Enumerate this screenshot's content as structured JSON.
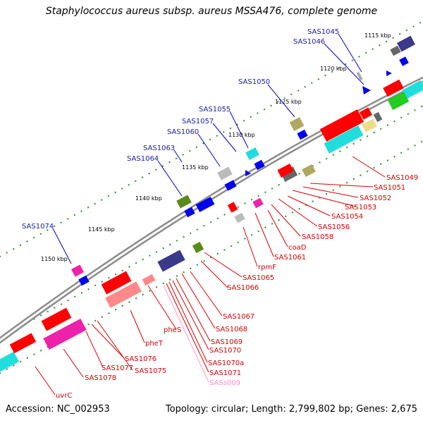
{
  "title": "Staphylococcus aureus subsp. aureus MSSA476, complete genome",
  "accession": "Accession: NC_002953",
  "summary": "Topology: circular; Length: 2,799,802 bp; Genes: 2,675",
  "kbp_labels": [
    "1115 kbp",
    "1120 kbp",
    "1125 kbp",
    "1130 kbp",
    "1135 kbp",
    "1140 kbp",
    "1145 kbp",
    "1150 kbp"
  ],
  "outer_genes": [
    "SAS1045",
    "SAS1046",
    "SAS1050",
    "SAS1055",
    "SAS1057",
    "SAS1060",
    "SAS1063",
    "SAS1064",
    "SAS1074"
  ],
  "inner_genes": [
    "SAS1049",
    "SAS1051",
    "SAS1052",
    "SAS1053",
    "SAS1054",
    "SAS1056",
    "SAS1058",
    "coaD",
    "SAS1061",
    "rpmF",
    "SAS1065",
    "SAS1066",
    "SAS1067",
    "SAS1068",
    "pheS",
    "pheT",
    "SAS1069",
    "SAS1070",
    "SAS1070a",
    "SAS1071",
    "SASs009",
    "SAS1076",
    "SAS1077",
    "SAS1075",
    "SAS1078",
    "uvrC"
  ],
  "colors": {
    "backbone": "#8c8c8c",
    "tick_green": "#2e8b2e",
    "outer_label": "#1a1aa8",
    "inner_label": "#d40000",
    "rna_label": "#ff88cc"
  }
}
